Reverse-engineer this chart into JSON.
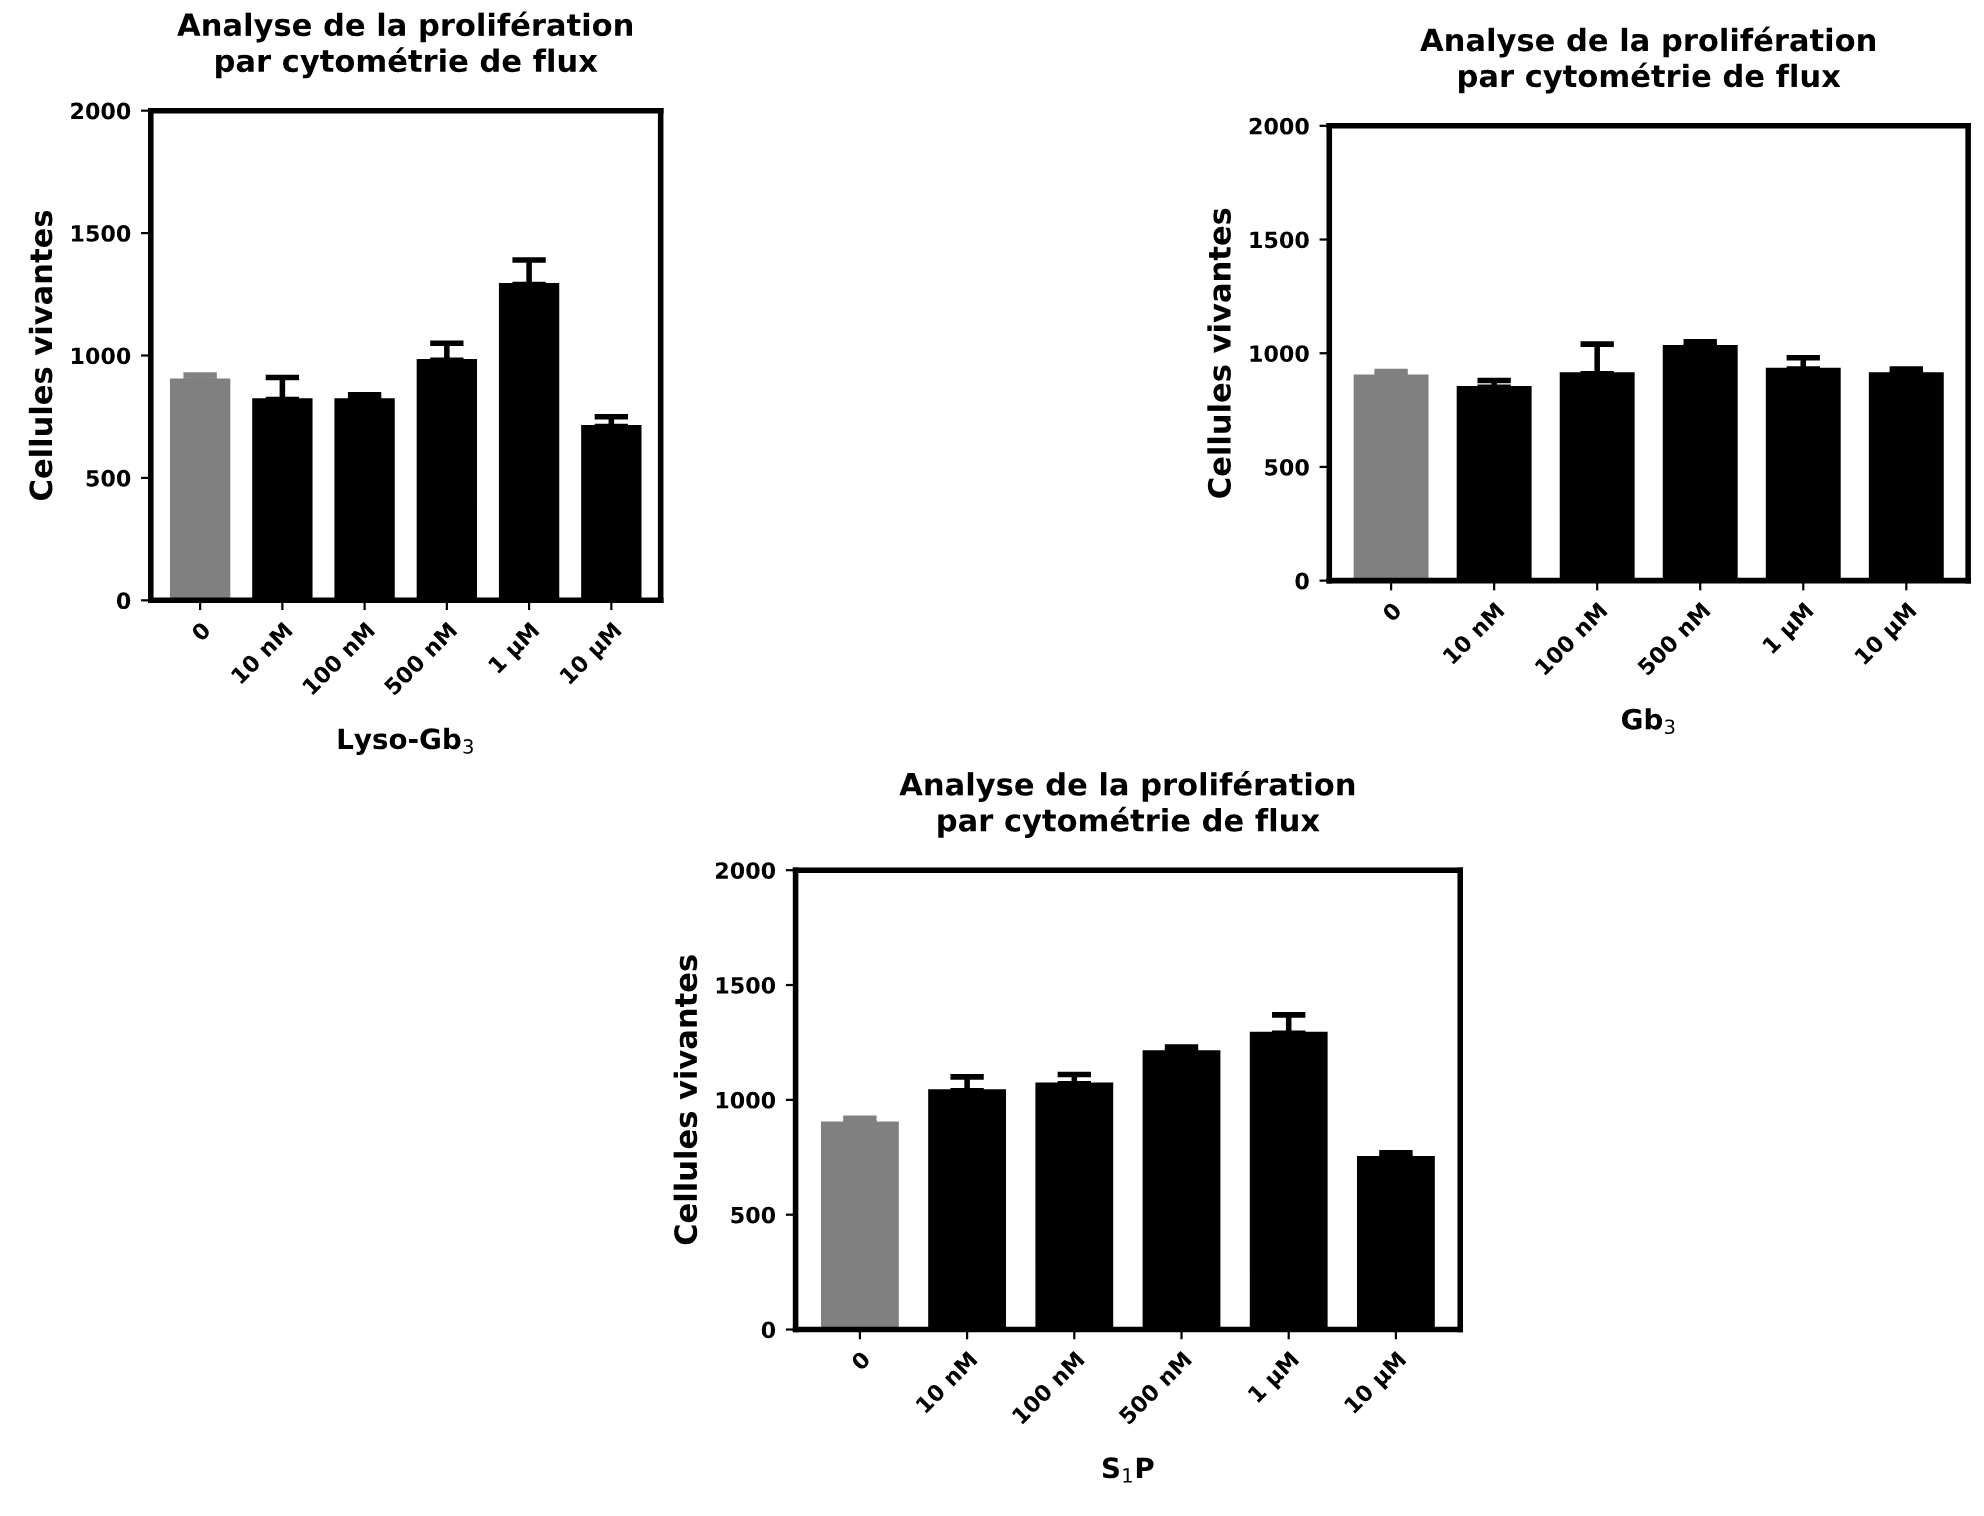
{
  "chart_data": [
    {
      "type": "bar",
      "title": "Analyse de la prolifération\npar cytométrie de flux",
      "xlabel": "Lyso-Gb$_{3}$",
      "ylabel": "Cellules vivantes",
      "categories": [
        "0",
        "10 nM",
        "100 nM",
        "500 nM",
        "1 µM",
        "10 µM"
      ],
      "values": [
        900,
        820,
        820,
        980,
        1290,
        710
      ],
      "colors": [
        "#808080",
        "#000000",
        "#000000",
        "#000000",
        "#000000",
        "#000000"
      ],
      "errors": [
        [
          900,
          920
        ],
        [
          820,
          910
        ],
        [
          820,
          840
        ],
        [
          980,
          1050
        ],
        [
          1290,
          1390
        ],
        [
          710,
          750
        ]
      ],
      "ylim": [
        0,
        2000
      ],
      "yticks": [
        0,
        500,
        1000,
        1500,
        2000
      ],
      "grid": false,
      "legend": false
    },
    {
      "type": "bar",
      "title": "Analyse de la prolifération\npar cytométrie de flux",
      "xlabel": "Gb$_{3}$",
      "ylabel": "Cellules vivantes",
      "categories": [
        "0",
        "10 nM",
        "100 nM",
        "500 nM",
        "1 µM",
        "10 µM"
      ],
      "values": [
        900,
        850,
        910,
        1030,
        930,
        910
      ],
      "colors": [
        "#808080",
        "#000000",
        "#000000",
        "#000000",
        "#000000",
        "#000000"
      ],
      "errors": [
        [
          900,
          920
        ],
        [
          850,
          880
        ],
        [
          910,
          1040
        ],
        [
          1030,
          1050
        ],
        [
          930,
          980
        ],
        [
          910,
          930
        ]
      ],
      "ylim": [
        0,
        2000
      ],
      "yticks": [
        0,
        500,
        1000,
        1500,
        2000
      ],
      "grid": false,
      "legend": false
    },
    {
      "type": "bar",
      "title": "Analyse de la prolifération\npar cytométrie de flux",
      "xlabel": "S$_{1}$P",
      "ylabel": "Cellules vivantes",
      "categories": [
        "0",
        "10 nM",
        "100 nM",
        "500 nM",
        "1 µM",
        "10 µM"
      ],
      "values": [
        900,
        1040,
        1070,
        1210,
        1290,
        750
      ],
      "colors": [
        "#808080",
        "#000000",
        "#000000",
        "#000000",
        "#000000",
        "#000000"
      ],
      "errors": [
        [
          900,
          920
        ],
        [
          1040,
          1100
        ],
        [
          1070,
          1110
        ],
        [
          1210,
          1230
        ],
        [
          1290,
          1370
        ],
        [
          750,
          770
        ]
      ],
      "ylim": [
        0,
        2000
      ],
      "yticks": [
        0,
        500,
        1000,
        1500,
        2000
      ],
      "grid": false,
      "legend": false
    }
  ]
}
